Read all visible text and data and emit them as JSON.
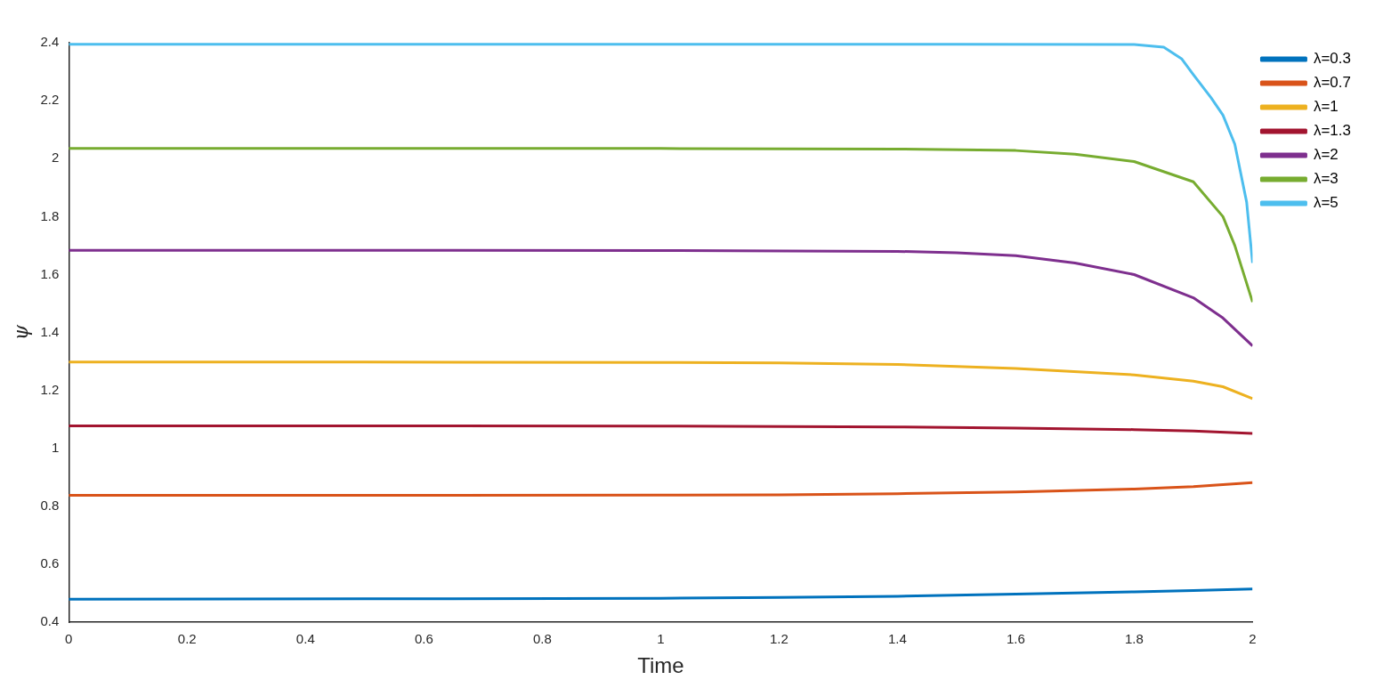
{
  "chart_data": {
    "type": "line",
    "xlabel": "Time",
    "ylabel": "ψ",
    "xlim": [
      0,
      2
    ],
    "xticks": [
      0,
      0.2,
      0.4,
      0.6,
      0.8,
      1,
      1.2,
      1.4,
      1.6,
      1.8,
      2
    ],
    "ylim": [
      0.4,
      2.4
    ],
    "yticks": [
      0.4,
      0.6,
      0.8,
      1,
      1.2,
      1.4,
      1.6,
      1.8,
      2,
      2.2,
      2.4
    ],
    "grid": false,
    "legend": "right",
    "marker": "none",
    "line_style": "solid",
    "series": [
      {
        "name": "λ=0.3",
        "color": "#0072bd",
        "x": [
          0,
          0.5,
          1,
          1.2,
          1.4,
          1.6,
          1.8,
          1.9,
          2
        ],
        "values": [
          0.48,
          0.481,
          0.483,
          0.486,
          0.49,
          0.497,
          0.505,
          0.51,
          0.515
        ]
      },
      {
        "name": "λ=0.7",
        "color": "#d95319",
        "x": [
          0,
          0.5,
          1,
          1.2,
          1.4,
          1.6,
          1.8,
          1.9,
          2
        ],
        "values": [
          0.838,
          0.838,
          0.839,
          0.84,
          0.844,
          0.85,
          0.86,
          0.868,
          0.882
        ]
      },
      {
        "name": "λ=1",
        "color": "#edb120",
        "x": [
          0,
          0.5,
          1,
          1.2,
          1.4,
          1.6,
          1.8,
          1.9,
          1.95,
          2
        ],
        "values": [
          1.298,
          1.298,
          1.297,
          1.295,
          1.29,
          1.276,
          1.254,
          1.232,
          1.213,
          1.172
        ]
      },
      {
        "name": "λ=1.3",
        "color": "#a2142f",
        "x": [
          0,
          0.5,
          1,
          1.4,
          1.6,
          1.8,
          1.9,
          2
        ],
        "values": [
          1.078,
          1.078,
          1.077,
          1.074,
          1.07,
          1.065,
          1.06,
          1.052
        ]
      },
      {
        "name": "λ=2",
        "color": "#7e2f8e",
        "x": [
          0,
          0.5,
          1,
          1.4,
          1.5,
          1.6,
          1.7,
          1.8,
          1.9,
          1.95,
          2
        ],
        "values": [
          1.684,
          1.684,
          1.683,
          1.68,
          1.675,
          1.665,
          1.64,
          1.6,
          1.52,
          1.45,
          1.354
        ]
      },
      {
        "name": "λ=3",
        "color": "#77ac30",
        "x": [
          0,
          0.5,
          1,
          1.4,
          1.6,
          1.7,
          1.8,
          1.9,
          1.95,
          1.97,
          2
        ],
        "values": [
          2.035,
          2.035,
          2.035,
          2.033,
          2.028,
          2.015,
          1.99,
          1.92,
          1.8,
          1.7,
          1.505
        ]
      },
      {
        "name": "λ=5",
        "color": "#4dbeee",
        "x": [
          0,
          0.5,
          1,
          1.5,
          1.8,
          1.85,
          1.88,
          1.9,
          1.93,
          1.95,
          1.97,
          1.99,
          2
        ],
        "values": [
          2.395,
          2.395,
          2.395,
          2.395,
          2.394,
          2.385,
          2.345,
          2.29,
          2.21,
          2.15,
          2.05,
          1.85,
          1.64
        ]
      }
    ]
  }
}
